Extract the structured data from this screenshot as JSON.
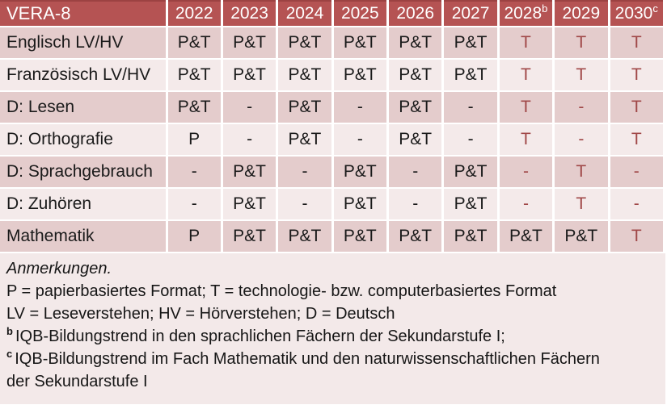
{
  "colors": {
    "header_bg": "#b55353",
    "header_top": "#9c4242",
    "band_dark": "#e4cccc",
    "band_light": "#f4eaea",
    "notes_bg": "#f3e9e9",
    "accent": "#a04848",
    "cell_text": "#1a1a1a"
  },
  "table": {
    "corner": "VERA-8",
    "years": [
      "2022",
      "2023",
      "2024",
      "2025",
      "2026",
      "2027",
      "2028",
      "2029",
      "2030"
    ],
    "year_sups": [
      "",
      "",
      "",
      "",
      "",
      "",
      "b",
      "",
      "c"
    ],
    "rows": [
      {
        "label": "Englisch LV/HV",
        "cells": [
          {
            "v": "P&T",
            "cls": ""
          },
          {
            "v": "P&T",
            "cls": ""
          },
          {
            "v": "P&T",
            "cls": ""
          },
          {
            "v": "P&T",
            "cls": ""
          },
          {
            "v": "P&T",
            "cls": ""
          },
          {
            "v": "P&T",
            "cls": ""
          },
          {
            "v": "T",
            "cls": "red"
          },
          {
            "v": "T",
            "cls": "red"
          },
          {
            "v": "T",
            "cls": "red"
          }
        ]
      },
      {
        "label": "Französisch LV/HV",
        "cells": [
          {
            "v": "P&T",
            "cls": ""
          },
          {
            "v": "P&T",
            "cls": ""
          },
          {
            "v": "P&T",
            "cls": ""
          },
          {
            "v": "P&T",
            "cls": ""
          },
          {
            "v": "P&T",
            "cls": ""
          },
          {
            "v": "P&T",
            "cls": ""
          },
          {
            "v": "T",
            "cls": "red"
          },
          {
            "v": "T",
            "cls": "red"
          },
          {
            "v": "T",
            "cls": "red"
          }
        ]
      },
      {
        "label": "D: Lesen",
        "cells": [
          {
            "v": "P&T",
            "cls": ""
          },
          {
            "v": "-",
            "cls": ""
          },
          {
            "v": "P&T",
            "cls": ""
          },
          {
            "v": "-",
            "cls": ""
          },
          {
            "v": "P&T",
            "cls": ""
          },
          {
            "v": "-",
            "cls": ""
          },
          {
            "v": "T",
            "cls": "red"
          },
          {
            "v": "-",
            "cls": "red"
          },
          {
            "v": "T",
            "cls": "red"
          }
        ]
      },
      {
        "label": "D: Orthografie",
        "cells": [
          {
            "v": "P",
            "cls": ""
          },
          {
            "v": "-",
            "cls": ""
          },
          {
            "v": "P&T",
            "cls": ""
          },
          {
            "v": "-",
            "cls": ""
          },
          {
            "v": "P&T",
            "cls": ""
          },
          {
            "v": "-",
            "cls": ""
          },
          {
            "v": "T",
            "cls": "red"
          },
          {
            "v": "-",
            "cls": "red"
          },
          {
            "v": "T",
            "cls": "red"
          }
        ]
      },
      {
        "label": "D: Sprachgebrauch",
        "cells": [
          {
            "v": "-",
            "cls": ""
          },
          {
            "v": "P&T",
            "cls": ""
          },
          {
            "v": "-",
            "cls": ""
          },
          {
            "v": "P&T",
            "cls": ""
          },
          {
            "v": "-",
            "cls": ""
          },
          {
            "v": "P&T",
            "cls": ""
          },
          {
            "v": "-",
            "cls": "red"
          },
          {
            "v": "T",
            "cls": "red"
          },
          {
            "v": "-",
            "cls": "red"
          }
        ]
      },
      {
        "label": "D: Zuhören",
        "cells": [
          {
            "v": "-",
            "cls": ""
          },
          {
            "v": "P&T",
            "cls": ""
          },
          {
            "v": "-",
            "cls": ""
          },
          {
            "v": "P&T",
            "cls": ""
          },
          {
            "v": "-",
            "cls": ""
          },
          {
            "v": "P&T",
            "cls": ""
          },
          {
            "v": "-",
            "cls": "red"
          },
          {
            "v": "T",
            "cls": "red"
          },
          {
            "v": "-",
            "cls": "red"
          }
        ]
      },
      {
        "label": "Mathematik",
        "cells": [
          {
            "v": "P",
            "cls": ""
          },
          {
            "v": "P&T",
            "cls": ""
          },
          {
            "v": "P&T",
            "cls": ""
          },
          {
            "v": "P&T",
            "cls": ""
          },
          {
            "v": "P&T",
            "cls": ""
          },
          {
            "v": "P&T",
            "cls": ""
          },
          {
            "v": "P&T",
            "cls": ""
          },
          {
            "v": "P&T",
            "cls": ""
          },
          {
            "v": "T",
            "cls": "red"
          }
        ]
      }
    ]
  },
  "notes": {
    "title": "Anmerkungen.",
    "formats_legend": "P = papierbasiertes Format; T = technologie- bzw. computerbasiertes Format",
    "abbrev_legend": "LV = Leseverstehen; HV = Hörverstehen; D = Deutsch",
    "footnote_b_sup": "b",
    "footnote_b": "IQB-Bildungstrend in den sprachlichen Fächern der Sekundarstufe I;",
    "footnote_c_sup": "c",
    "footnote_c": "IQB-Bildungstrend im Fach Mathematik und den naturwissenschaftlichen Fächern der Sekundarstufe I"
  }
}
